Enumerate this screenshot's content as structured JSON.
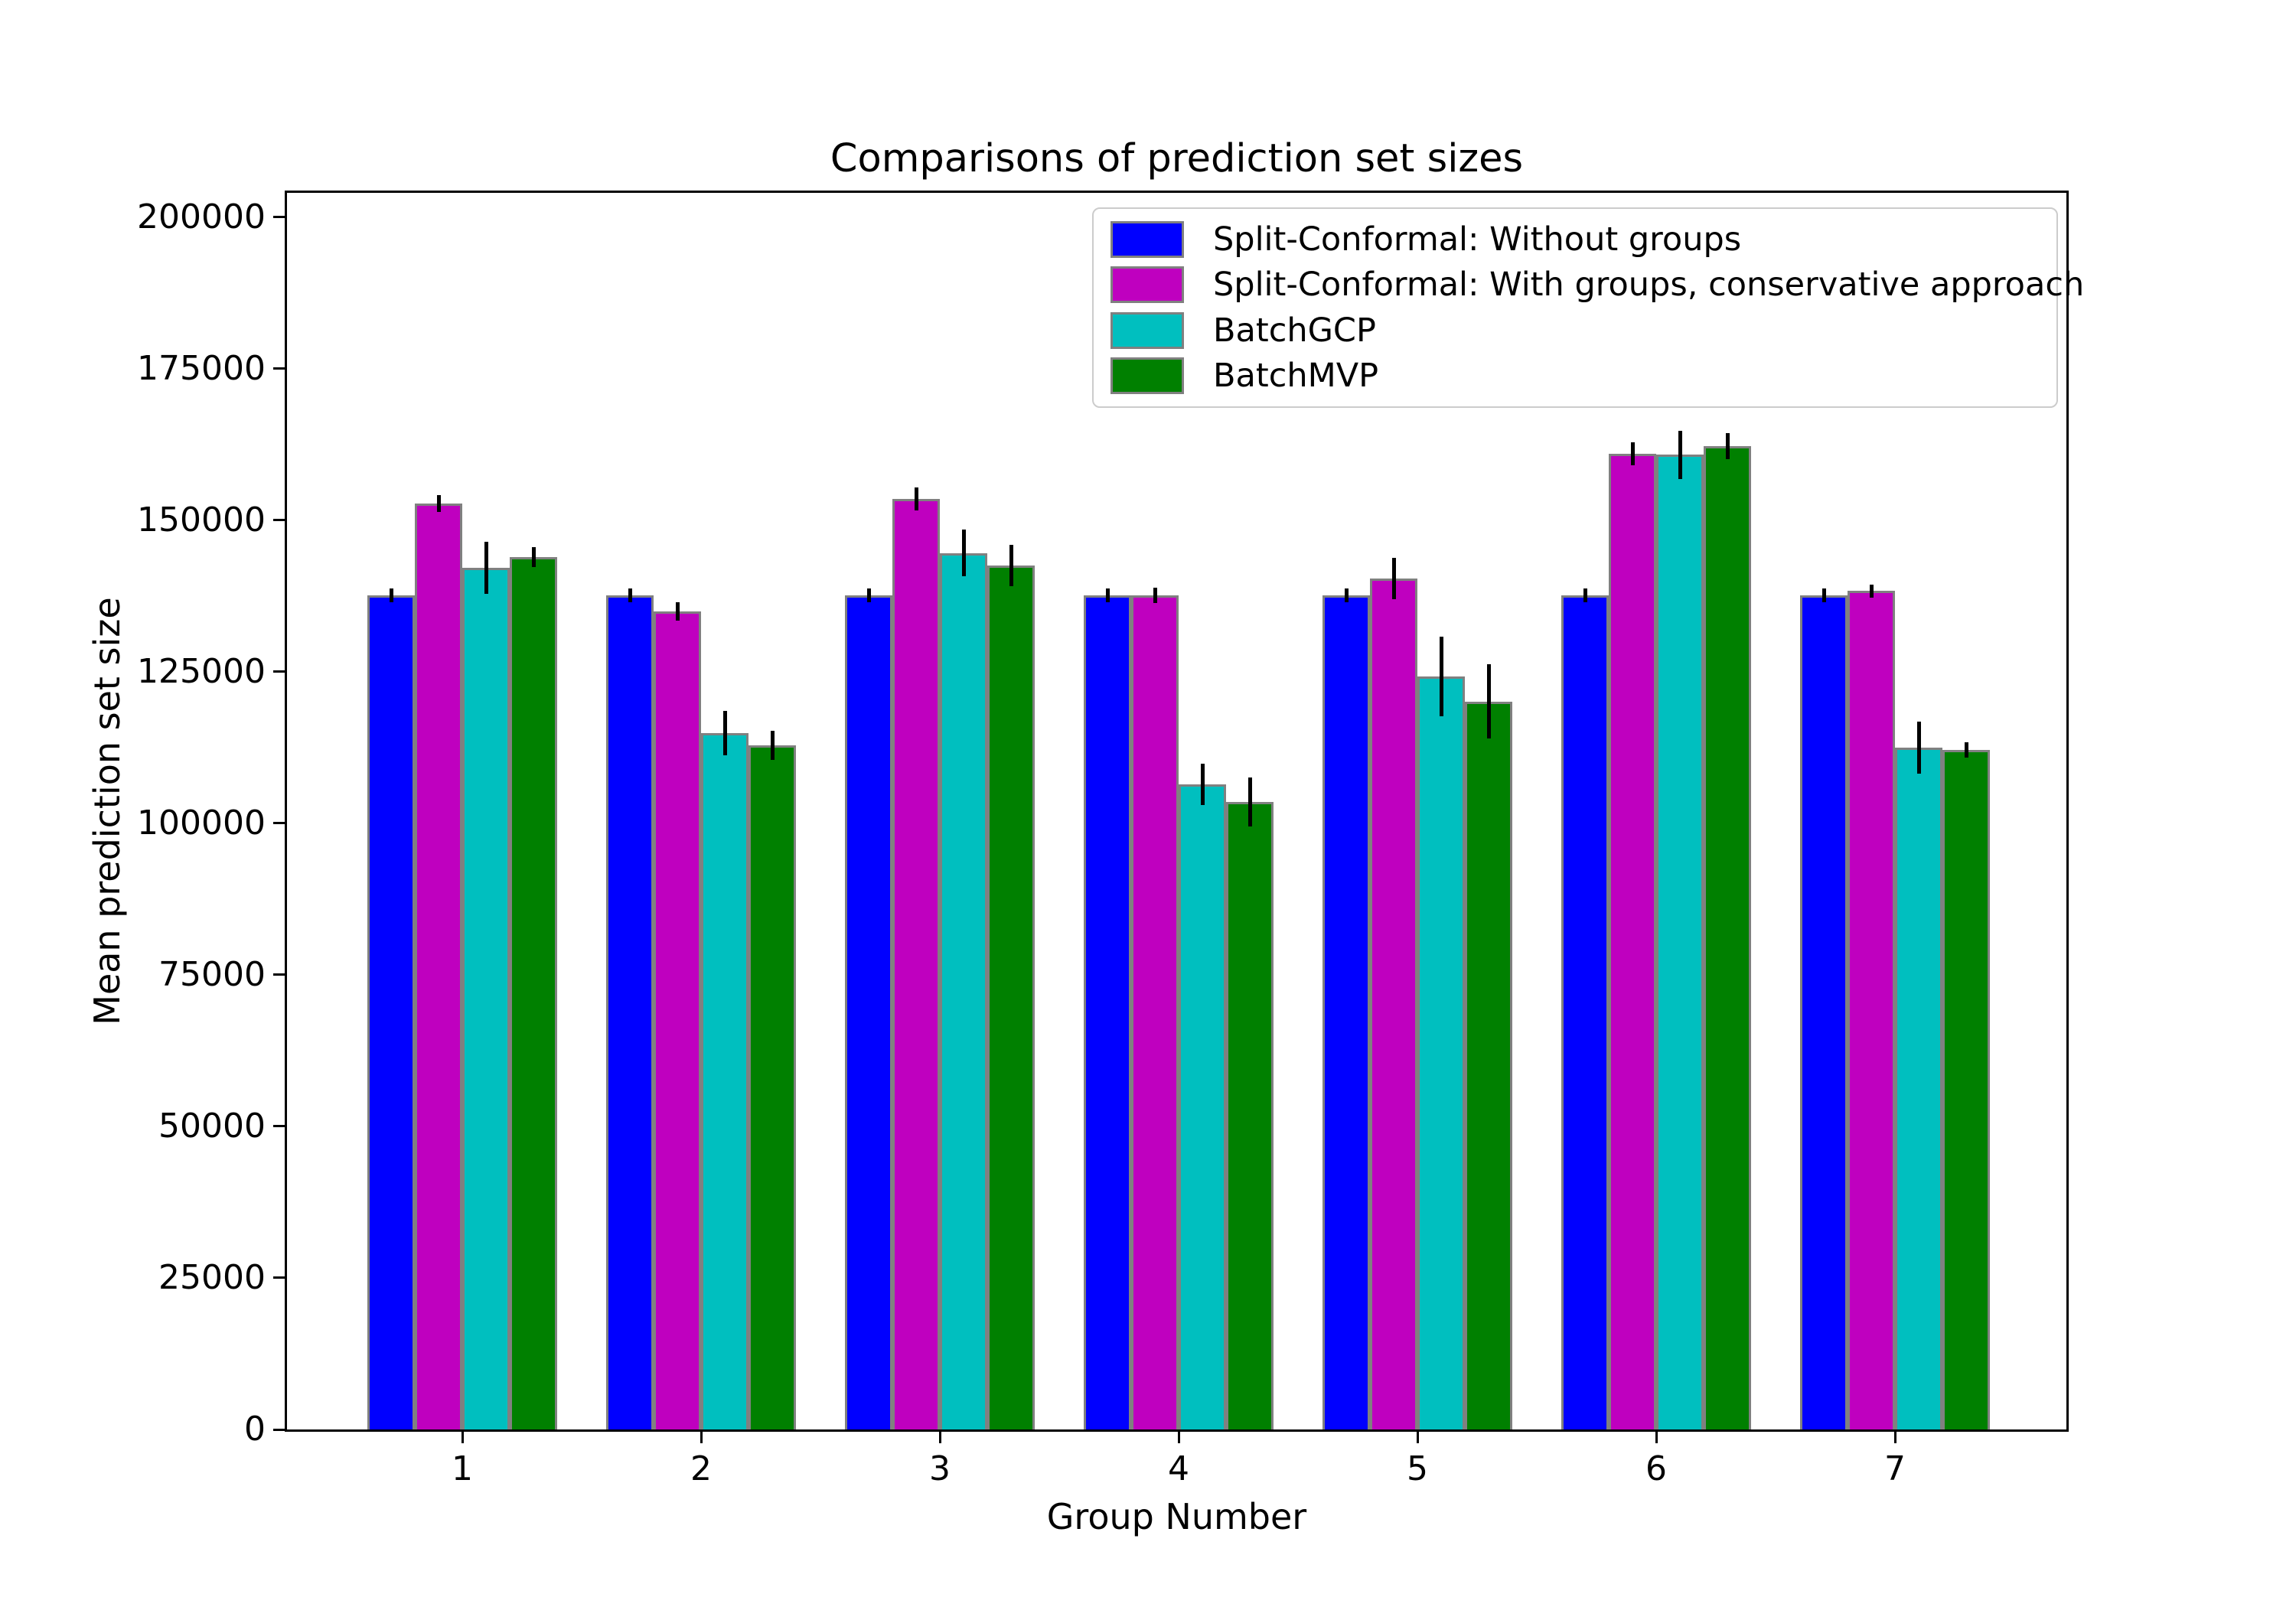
{
  "chart_data": {
    "type": "bar",
    "title": "Comparisons of prediction set sizes",
    "xlabel": "Group Number",
    "ylabel": "Mean prediction set size",
    "categories": [
      "1",
      "2",
      "3",
      "4",
      "5",
      "6",
      "7"
    ],
    "yticks": [
      0,
      25000,
      50000,
      75000,
      100000,
      125000,
      150000,
      175000,
      200000
    ],
    "ylim": [
      0,
      204000
    ],
    "grid": false,
    "legend_position": "upper right",
    "bar_edge_color": "#808080",
    "error_bar_color": "#000000",
    "series": [
      {
        "name": "Split-Conformal: Without groups",
        "color": "#0000ff",
        "values": [
          137600,
          137600,
          137600,
          137600,
          137600,
          137600,
          137600
        ],
        "errors": [
          1100,
          1100,
          1100,
          1100,
          1100,
          1100,
          1100
        ]
      },
      {
        "name": "Split-Conformal: With groups, conservative approach",
        "color": "#bf00bf",
        "values": [
          152700,
          134900,
          153500,
          137600,
          140400,
          160900,
          138300
        ],
        "errors": [
          1400,
          1500,
          1900,
          1300,
          3400,
          1900,
          1100
        ]
      },
      {
        "name": "BatchGCP",
        "color": "#00bfbf",
        "values": [
          142100,
          114900,
          144600,
          106400,
          124200,
          160800,
          112500
        ],
        "errors": [
          4300,
          3700,
          3900,
          3400,
          6600,
          4000,
          4300
        ]
      },
      {
        "name": "BatchMVP",
        "color": "#008000",
        "values": [
          143900,
          112800,
          142500,
          103500,
          120100,
          162200,
          112100
        ],
        "errors": [
          1600,
          2400,
          3400,
          4000,
          6100,
          2100,
          1300
        ]
      }
    ]
  }
}
